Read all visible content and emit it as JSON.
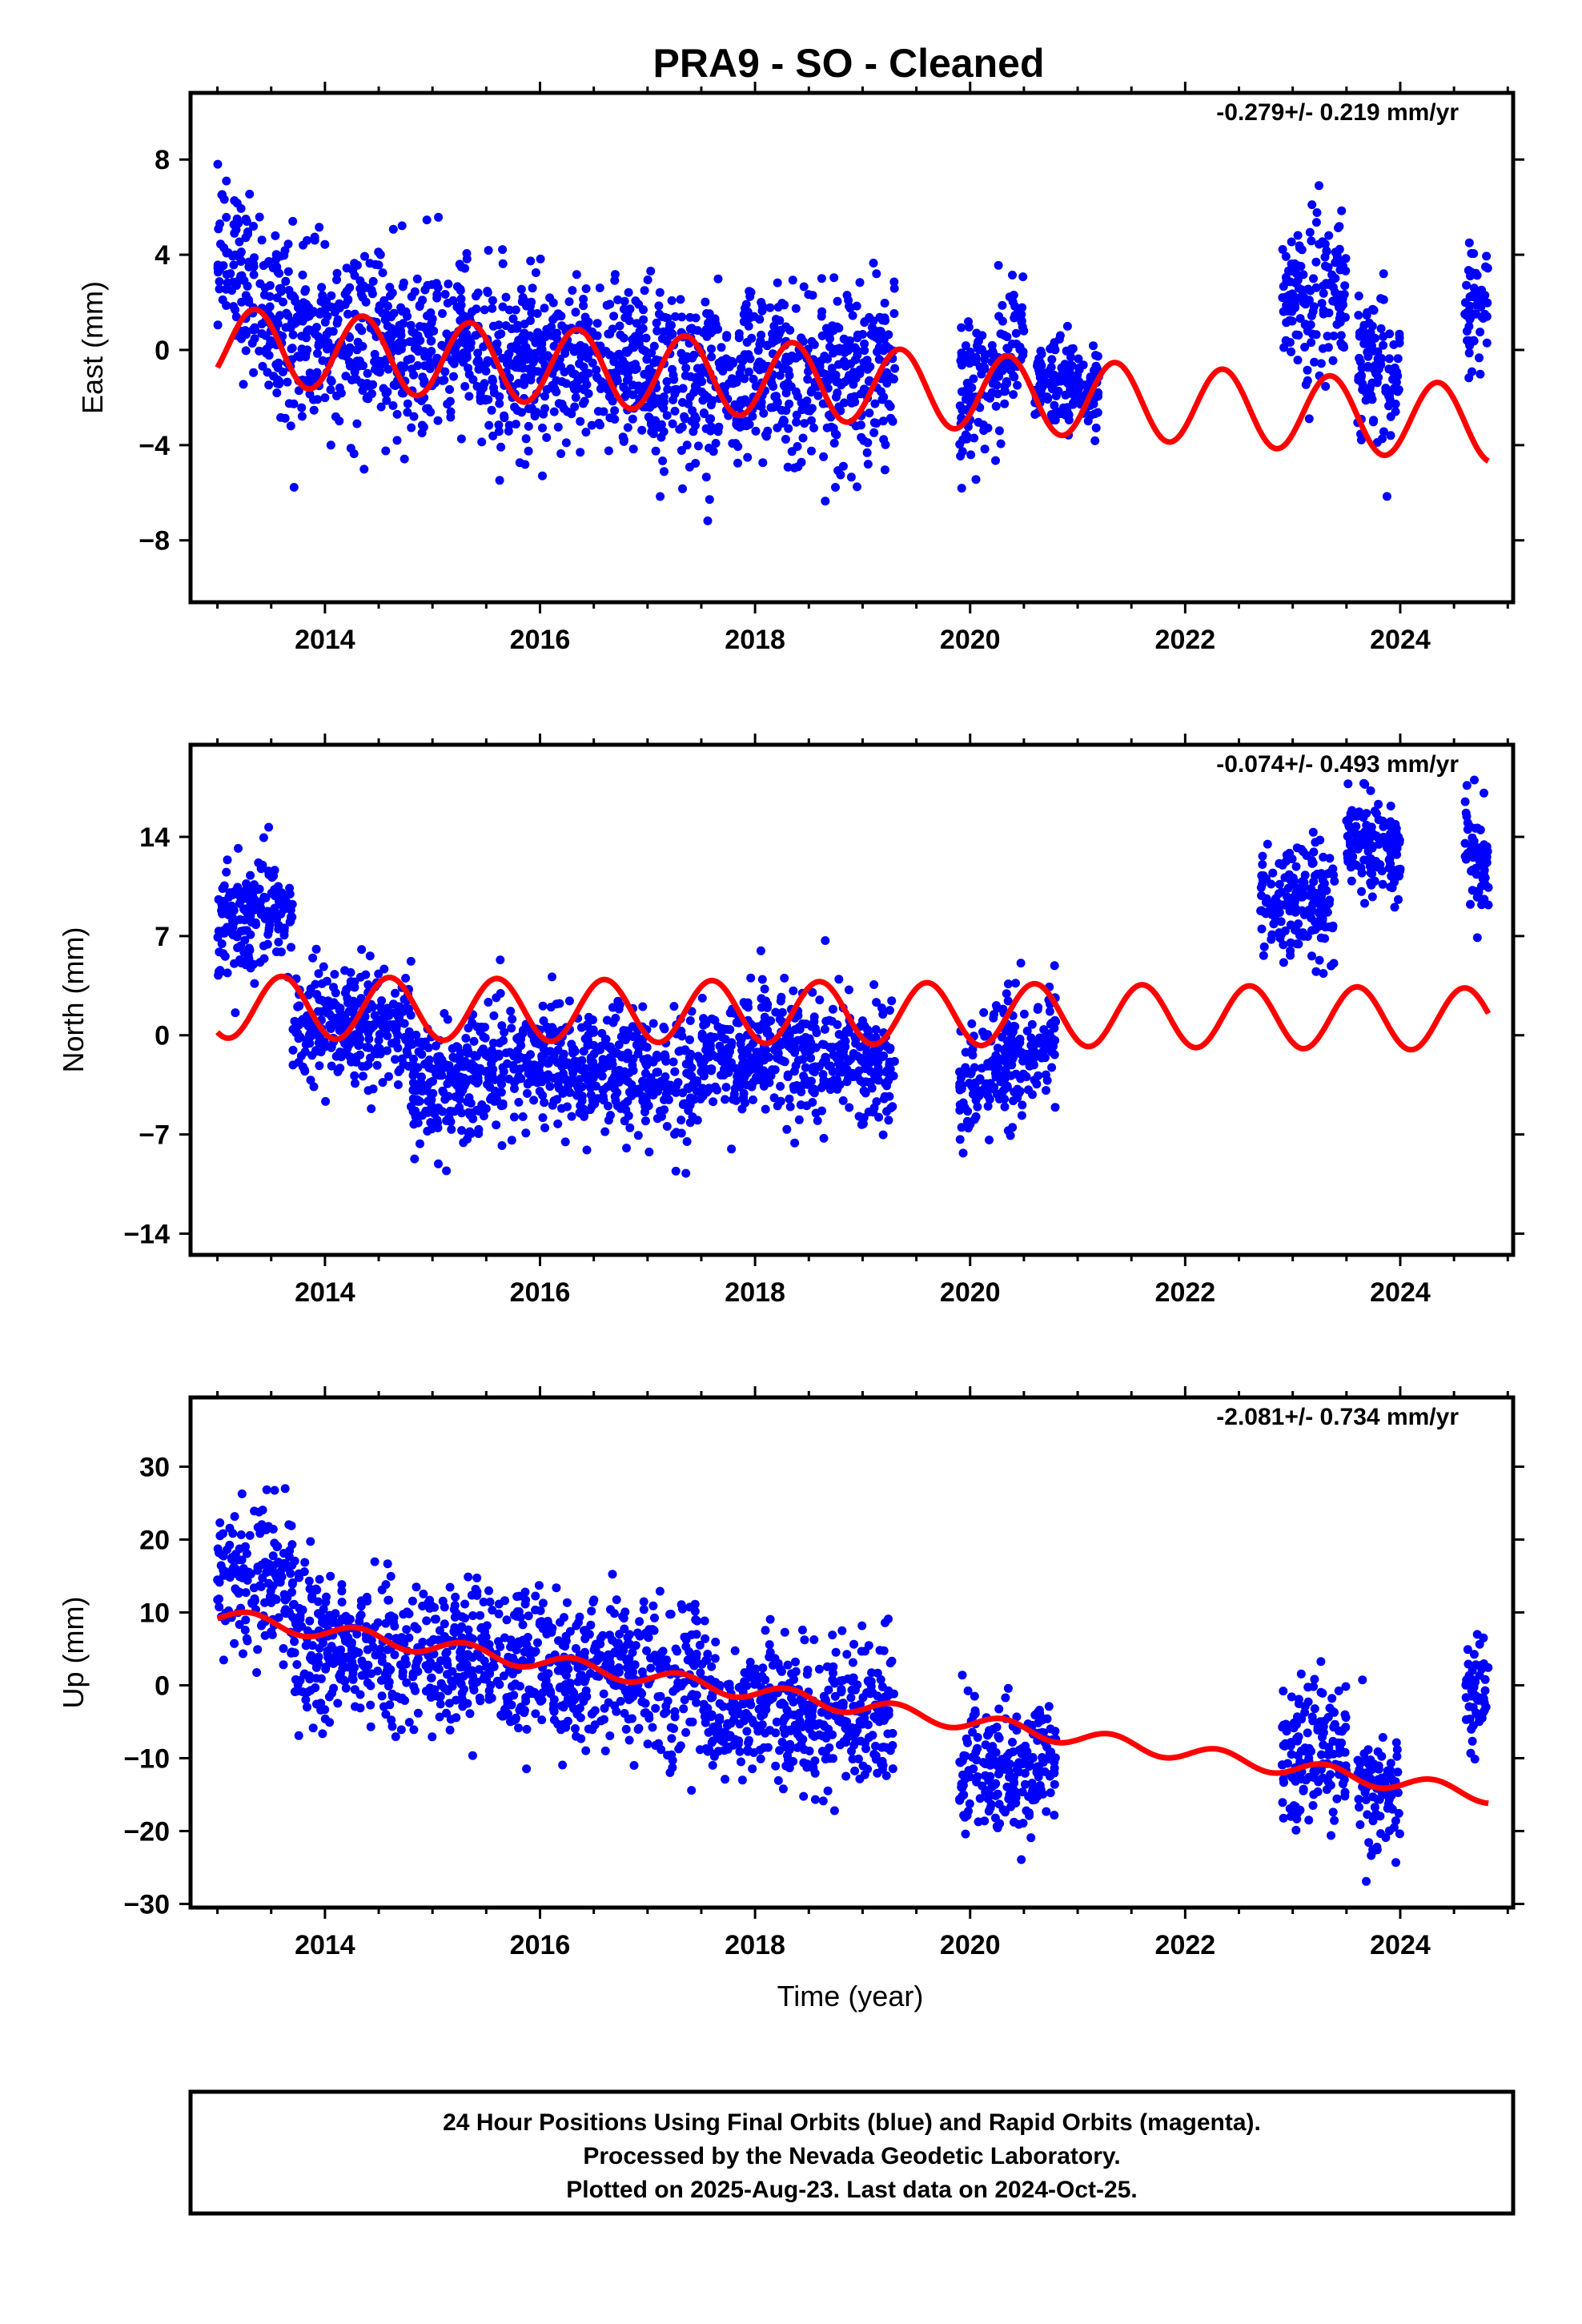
{
  "title": "PRA9  - SO - Cleaned",
  "xlabel": "Time (year)",
  "footer": {
    "line1": "24 Hour Positions Using Final Orbits (blue) and Rapid Orbits (magenta).",
    "line2": "Processed by the Nevada Geodetic Laboratory.",
    "line3": "Plotted on 2025-Aug-23. Last data on 2024-Oct-25."
  },
  "colors": {
    "points": "#0000ff",
    "model": "#ff0000",
    "frame": "#000000"
  },
  "chart_data": [
    {
      "type": "scatter",
      "ylabel": "East (mm)",
      "rate_text": "-0.279+/- 0.219 mm/yr",
      "xlim": [
        2012.75,
        2025.05
      ],
      "ylim": [
        -10.6,
        10.8
      ],
      "xticks": [
        2014,
        2016,
        2018,
        2020,
        2022,
        2024
      ],
      "yticks": [
        -8,
        -4,
        0,
        4,
        8
      ],
      "ytick_labels": [
        "−8",
        "−4",
        "0",
        "4",
        "8"
      ],
      "grid": false,
      "model": {
        "offset": 0.2,
        "rate": -0.279,
        "amplitude": 1.6,
        "phase_year": 2013.35,
        "end": 2024.82
      },
      "series": [
        {
          "style": "points",
          "segments": [
            {
              "x": [
                2013.0,
                2013.7
              ],
              "y": [
                4.0,
                0.8
              ],
              "spread": 1.8
            },
            {
              "x": [
                2013.7,
                2014.8
              ],
              "y": [
                0.5,
                0.0
              ],
              "spread": 1.8
            },
            {
              "x": [
                2014.8,
                2016.2
              ],
              "y": [
                0.0,
                -0.6
              ],
              "spread": 1.8
            },
            {
              "x": [
                2016.2,
                2017.5
              ],
              "y": [
                -0.6,
                -1.2
              ],
              "spread": 1.8
            },
            {
              "x": [
                2017.5,
                2019.3
              ],
              "y": [
                -1.2,
                -1.0
              ],
              "spread": 1.8
            },
            {
              "x": [
                2019.9,
                2020.5
              ],
              "y": [
                -2.0,
                0.0
              ],
              "spread": 1.6
            },
            {
              "x": [
                2020.6,
                2021.2
              ],
              "y": [
                -1.5,
                -1.5
              ],
              "spread": 1.0
            },
            {
              "x": [
                2022.9,
                2023.5
              ],
              "y": [
                2.0,
                1.8
              ],
              "spread": 1.6
            },
            {
              "x": [
                2023.6,
                2024.0
              ],
              "y": [
                -0.5,
                -1.0
              ],
              "spread": 1.6
            },
            {
              "x": [
                2024.6,
                2024.82
              ],
              "y": [
                2.0,
                1.8
              ],
              "spread": 1.2
            }
          ],
          "density": 260
        }
      ]
    },
    {
      "type": "scatter",
      "ylabel": "North (mm)",
      "rate_text": "-0.074+/- 0.493 mm/yr",
      "xlim": [
        2012.75,
        2025.05
      ],
      "ylim": [
        -15.5,
        20.5
      ],
      "xticks": [
        2014,
        2016,
        2018,
        2020,
        2022,
        2024
      ],
      "yticks": [
        -14,
        -7,
        0,
        7,
        14
      ],
      "ytick_labels": [
        "−14",
        "−7",
        "0",
        "7",
        "14"
      ],
      "grid": false,
      "model": {
        "offset": 2.0,
        "rate": -0.074,
        "amplitude": 2.2,
        "phase_year": 2013.6,
        "end": 2024.82
      },
      "series": [
        {
          "style": "points",
          "segments": [
            {
              "x": [
                2013.0,
                2013.7
              ],
              "y": [
                8.0,
                9.5
              ],
              "spread": 2.0
            },
            {
              "x": [
                2013.7,
                2014.8
              ],
              "y": [
                0.5,
                1.0
              ],
              "spread": 2.0
            },
            {
              "x": [
                2014.8,
                2016.2
              ],
              "y": [
                -4.0,
                -1.5
              ],
              "spread": 2.2
            },
            {
              "x": [
                2016.2,
                2017.5
              ],
              "y": [
                -2.5,
                -3.0
              ],
              "spread": 2.2
            },
            {
              "x": [
                2017.5,
                2019.3
              ],
              "y": [
                -1.0,
                -2.0
              ],
              "spread": 2.2
            },
            {
              "x": [
                2019.9,
                2020.8
              ],
              "y": [
                -4.0,
                0.0
              ],
              "spread": 2.2
            },
            {
              "x": [
                2022.7,
                2023.4
              ],
              "y": [
                9.5,
                9.0
              ],
              "spread": 2.0
            },
            {
              "x": [
                2023.5,
                2024.0
              ],
              "y": [
                14.0,
                13.0
              ],
              "spread": 1.6
            },
            {
              "x": [
                2024.6,
                2024.82
              ],
              "y": [
                14.0,
                11.0
              ],
              "spread": 2.0
            }
          ],
          "density": 260
        }
      ]
    },
    {
      "type": "scatter",
      "ylabel": "Up (mm)",
      "rate_text": "-2.081+/- 0.734 mm/yr",
      "xlim": [
        2012.75,
        2025.05
      ],
      "ylim": [
        -30.5,
        39.5
      ],
      "xticks": [
        2014,
        2016,
        2018,
        2020,
        2022,
        2024
      ],
      "yticks": [
        -30,
        -20,
        -10,
        0,
        10,
        20,
        30
      ],
      "ytick_labels": [
        "−30",
        "−20",
        "−10",
        "0",
        "10",
        "20",
        "30"
      ],
      "grid": false,
      "model": {
        "offset": 9.5,
        "rate": -2.081,
        "amplitude": 1.1,
        "phase_year": 2013.3,
        "end": 2024.82
      },
      "series": [
        {
          "style": "points",
          "segments": [
            {
              "x": [
                2013.0,
                2013.7
              ],
              "y": [
                16.0,
                13.0
              ],
              "spread": 5.0
            },
            {
              "x": [
                2013.7,
                2014.8
              ],
              "y": [
                6.0,
                4.0
              ],
              "spread": 5.0
            },
            {
              "x": [
                2014.8,
                2016.2
              ],
              "y": [
                4.0,
                3.0
              ],
              "spread": 5.0
            },
            {
              "x": [
                2016.2,
                2017.5
              ],
              "y": [
                2.0,
                0.0
              ],
              "spread": 5.0
            },
            {
              "x": [
                2017.5,
                2019.3
              ],
              "y": [
                -3.0,
                -4.0
              ],
              "spread": 5.0
            },
            {
              "x": [
                2019.9,
                2020.8
              ],
              "y": [
                -12.0,
                -11.0
              ],
              "spread": 4.5
            },
            {
              "x": [
                2022.9,
                2023.5
              ],
              "y": [
                -10.0,
                -9.0
              ],
              "spread": 4.5
            },
            {
              "x": [
                2023.6,
                2024.0
              ],
              "y": [
                -14.0,
                -15.0
              ],
              "spread": 4.5
            },
            {
              "x": [
                2024.6,
                2024.82
              ],
              "y": [
                -2.0,
                -1.0
              ],
              "spread": 4.0
            }
          ],
          "density": 240
        }
      ]
    }
  ]
}
